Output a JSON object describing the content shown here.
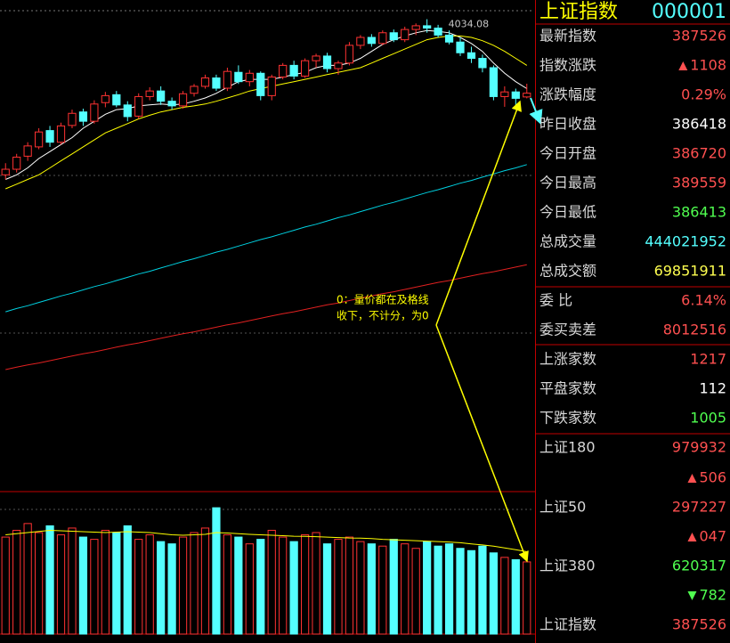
{
  "chart_data": {
    "type": "candlestick",
    "ylim": [
      3020,
      4060
    ],
    "candles": [
      [
        3700,
        3725,
        3690,
        3712
      ],
      [
        3712,
        3745,
        3705,
        3738
      ],
      [
        3740,
        3770,
        3730,
        3762
      ],
      [
        3760,
        3800,
        3755,
        3792
      ],
      [
        3795,
        3805,
        3760,
        3770
      ],
      [
        3770,
        3812,
        3765,
        3805
      ],
      [
        3806,
        3840,
        3800,
        3832
      ],
      [
        3835,
        3842,
        3805,
        3815
      ],
      [
        3815,
        3860,
        3810,
        3852
      ],
      [
        3855,
        3878,
        3845,
        3870
      ],
      [
        3872,
        3880,
        3845,
        3850
      ],
      [
        3850,
        3858,
        3815,
        3825
      ],
      [
        3826,
        3875,
        3820,
        3868
      ],
      [
        3868,
        3888,
        3860,
        3880
      ],
      [
        3880,
        3890,
        3850,
        3858
      ],
      [
        3858,
        3866,
        3840,
        3848
      ],
      [
        3848,
        3880,
        3842,
        3874
      ],
      [
        3875,
        3895,
        3868,
        3890
      ],
      [
        3890,
        3915,
        3885,
        3908
      ],
      [
        3908,
        3915,
        3880,
        3886
      ],
      [
        3886,
        3930,
        3880,
        3922
      ],
      [
        3920,
        3935,
        3895,
        3900
      ],
      [
        3900,
        3925,
        3890,
        3918
      ],
      [
        3918,
        3922,
        3860,
        3870
      ],
      [
        3870,
        3915,
        3860,
        3910
      ],
      [
        3910,
        3940,
        3905,
        3935
      ],
      [
        3935,
        3945,
        3905,
        3912
      ],
      [
        3912,
        3950,
        3908,
        3945
      ],
      [
        3945,
        3960,
        3930,
        3955
      ],
      [
        3955,
        3962,
        3920,
        3928
      ],
      [
        3928,
        3945,
        3915,
        3940
      ],
      [
        3940,
        3985,
        3935,
        3978
      ],
      [
        3978,
        4000,
        3970,
        3995
      ],
      [
        3995,
        4002,
        3975,
        3982
      ],
      [
        3982,
        4010,
        3978,
        4005
      ],
      [
        4005,
        4012,
        3985,
        3990
      ],
      [
        3990,
        4018,
        3985,
        4012
      ],
      [
        4012,
        4025,
        4000,
        4020
      ],
      [
        4020,
        4034.08,
        4005,
        4015
      ],
      [
        4015,
        4022,
        3995,
        4000
      ],
      [
        4000,
        4010,
        3980,
        3985
      ],
      [
        3985,
        3995,
        3955,
        3962
      ],
      [
        3962,
        3975,
        3940,
        3950
      ],
      [
        3950,
        3958,
        3920,
        3930
      ],
      [
        3930,
        3935,
        3860,
        3868
      ],
      [
        3868,
        3890,
        3846,
        3878
      ],
      [
        3878,
        3885,
        3850,
        3864.18
      ],
      [
        3867.2,
        3895.59,
        3864.13,
        3875.26
      ]
    ],
    "up_color": "#ff3232",
    "down_color": "#54ffff",
    "series": [
      {
        "color": "#ffffff",
        "values": [
          3690,
          3700,
          3715,
          3735,
          3750,
          3765,
          3780,
          3800,
          3815,
          3830,
          3840,
          3842,
          3848,
          3850,
          3852,
          3850,
          3852,
          3858,
          3865,
          3875,
          3888,
          3900,
          3905,
          3905,
          3905,
          3910,
          3915,
          3920,
          3930,
          3935,
          3935,
          3940,
          3950,
          3965,
          3980,
          3990,
          3998,
          4005,
          4010,
          4008,
          4005,
          3995,
          3982,
          3965,
          3940,
          3918,
          3900,
          3885
        ]
      },
      {
        "color": "#ffff00",
        "values": [
          3670,
          3680,
          3690,
          3700,
          3715,
          3730,
          3745,
          3760,
          3775,
          3790,
          3800,
          3810,
          3820,
          3828,
          3835,
          3840,
          3845,
          3848,
          3852,
          3858,
          3865,
          3872,
          3880,
          3885,
          3890,
          3895,
          3900,
          3905,
          3910,
          3915,
          3920,
          3925,
          3930,
          3940,
          3950,
          3960,
          3970,
          3980,
          3990,
          3995,
          3998,
          3998,
          3995,
          3988,
          3978,
          3965,
          3950,
          3935
        ]
      },
      {
        "color": "#00d0e0",
        "values": [
          3406,
          3413,
          3419,
          3426,
          3433,
          3440,
          3446,
          3453,
          3460,
          3466,
          3473,
          3480,
          3487,
          3493,
          3500,
          3507,
          3514,
          3520,
          3527,
          3534,
          3540,
          3547,
          3554,
          3561,
          3567,
          3574,
          3581,
          3588,
          3594,
          3601,
          3608,
          3614,
          3621,
          3628,
          3635,
          3641,
          3648,
          3655,
          3662,
          3668,
          3675,
          3682,
          3688,
          3695,
          3702,
          3709,
          3715,
          3722
        ]
      },
      {
        "color": "#e02020",
        "values": [
          3282,
          3287,
          3292,
          3296,
          3301,
          3306,
          3311,
          3316,
          3320,
          3325,
          3330,
          3335,
          3339,
          3344,
          3349,
          3354,
          3359,
          3363,
          3368,
          3373,
          3378,
          3382,
          3387,
          3392,
          3397,
          3402,
          3406,
          3411,
          3416,
          3421,
          3425,
          3430,
          3435,
          3440,
          3445,
          3449,
          3454,
          3459,
          3464,
          3469,
          3473,
          3478,
          3483,
          3488,
          3492,
          3497,
          3502,
          3507
        ]
      }
    ],
    "volume_ylim": [
      0,
      6000
    ],
    "volumes": [
      4300,
      4600,
      4900,
      4500,
      4800,
      4400,
      4700,
      4300,
      4200,
      4600,
      4500,
      4800,
      4200,
      4400,
      4100,
      4000,
      4300,
      4500,
      4700,
      5600,
      4400,
      4300,
      4000,
      4200,
      4600,
      4300,
      4100,
      4400,
      4500,
      4000,
      4200,
      4300,
      4100,
      4000,
      3900,
      4200,
      4000,
      3800,
      4100,
      3900,
      4000,
      3800,
      3700,
      3900,
      3600,
      3400,
      3300,
      3200
    ],
    "volume_ma": {
      "color": "#ffff00",
      "values": [
        4400,
        4450,
        4500,
        4550,
        4600,
        4580,
        4560,
        4540,
        4520,
        4500,
        4520,
        4540,
        4520,
        4500,
        4450,
        4400,
        4380,
        4400,
        4420,
        4500,
        4480,
        4450,
        4420,
        4400,
        4380,
        4360,
        4340,
        4330,
        4320,
        4300,
        4280,
        4260,
        4250,
        4230,
        4200,
        4180,
        4160,
        4140,
        4120,
        4100,
        4080,
        4050,
        4000,
        3950,
        3900,
        3820,
        3740,
        3650
      ]
    },
    "annotation": [
      "0：量价都在及格线",
      "收下，不计分，为0"
    ]
  },
  "panel": {
    "title": "上证指数",
    "code": "000001",
    "rows": [
      {
        "label": "最新指数",
        "value": 387526,
        "color": "#ff5050"
      },
      {
        "label": "指数涨跌",
        "value": 1108,
        "color": "#ff5050",
        "arrow": "up"
      },
      {
        "label": "涨跌幅度",
        "value": "0.29%",
        "color": "#ff5050"
      },
      {
        "label": "昨日收盘",
        "value": 386418,
        "color": "#ffffff"
      },
      {
        "label": "今日开盘",
        "value": 386720,
        "color": "#ff5050"
      },
      {
        "label": "今日最高",
        "value": 389559,
        "color": "#ff5050"
      },
      {
        "label": "今日最低",
        "value": 386413,
        "color": "#50ff50"
      },
      {
        "label": "总成交量",
        "value": 444021952,
        "color": "#54ffff"
      },
      {
        "label": "总成交额",
        "value": 69851911,
        "color": "#ffff50"
      },
      {
        "label": "委 比",
        "value": "6.14%",
        "color": "#ff5050"
      },
      {
        "label": "委买卖差",
        "value": 8012516,
        "color": "#ff5050"
      },
      {
        "label": "上涨家数",
        "value": 1217,
        "color": "#ff5050"
      },
      {
        "label": "平盘家数",
        "value": 112,
        "color": "#ffffff"
      },
      {
        "label": "下跌家数",
        "value": 1005,
        "color": "#50ff50"
      },
      {
        "label": "上证180",
        "value": 979932,
        "color": "#ff5050"
      },
      {
        "value": 506,
        "color": "#ff5050",
        "arrow": "up"
      },
      {
        "label": "上证50",
        "value": 297227,
        "color": "#ff5050"
      },
      {
        "value": "047",
        "color": "#ff5050",
        "arrow": "up"
      },
      {
        "label": "上证380",
        "value": 620317,
        "color": "#50ff50"
      },
      {
        "value": 782,
        "color": "#50ff50",
        "arrow": "down"
      },
      {
        "label": "上证指数",
        "value": 387526,
        "color": "#ff5050"
      }
    ]
  }
}
